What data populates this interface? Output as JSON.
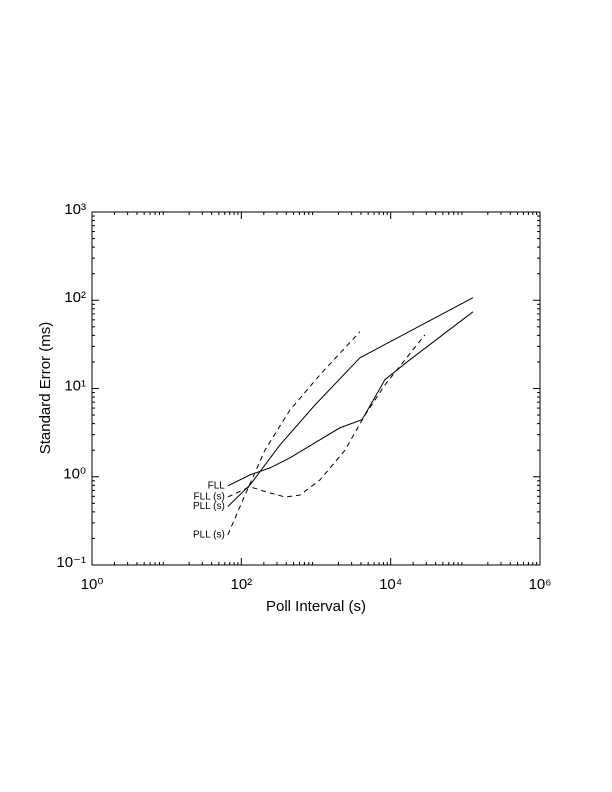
{
  "chart_data": {
    "type": "line",
    "xlabel": "Poll Interval (s)",
    "ylabel": "Standard Error (ms)",
    "xlog": true,
    "ylog": true,
    "xlim": [
      1,
      1000000
    ],
    "ylim": [
      0.1,
      1000
    ],
    "xticks": [
      {
        "value": 1,
        "label": "10⁰"
      },
      {
        "value": 100,
        "label": "10²"
      },
      {
        "value": 10000,
        "label": "10⁴"
      },
      {
        "value": 1000000,
        "label": "10⁶"
      }
    ],
    "yticks": [
      {
        "value": 0.1,
        "label": "10⁻¹"
      },
      {
        "value": 1,
        "label": "10⁰"
      },
      {
        "value": 10,
        "label": "10¹"
      },
      {
        "value": 100,
        "label": "10²"
      },
      {
        "value": 1000,
        "label": "10³"
      }
    ],
    "series": [
      {
        "name": "FLL",
        "color": "#000000",
        "dash": false,
        "x": [
          66,
          131,
          242,
          448,
          2095,
          4130,
          8390,
          18140,
          126500
        ],
        "values": [
          0.79,
          1.05,
          1.26,
          1.64,
          3.59,
          4.43,
          12.6,
          21.2,
          74
        ]
      },
      {
        "name": "FLL (s)",
        "color": "#000000",
        "dash": true,
        "x": [
          66,
          131,
          207,
          384,
          611,
          1130,
          2445,
          4530,
          8390,
          28800
        ],
        "values": [
          0.59,
          0.77,
          0.68,
          0.59,
          0.62,
          0.92,
          2.0,
          5.0,
          11.0,
          40.6
        ]
      },
      {
        "name": "PLL (s)",
        "color": "#000000",
        "dash": false,
        "x": [
          66,
          131,
          330,
          968,
          3880,
          126500
        ],
        "values": [
          0.46,
          0.81,
          2.3,
          6.5,
          22.3,
          107
        ]
      },
      {
        "name": "PLL (s)",
        "color": "#000000",
        "dash": true,
        "x": [
          66,
          112,
          207,
          448,
          1130,
          3880
        ],
        "values": [
          0.22,
          0.62,
          2.0,
          5.7,
          14.3,
          44
        ]
      }
    ]
  }
}
